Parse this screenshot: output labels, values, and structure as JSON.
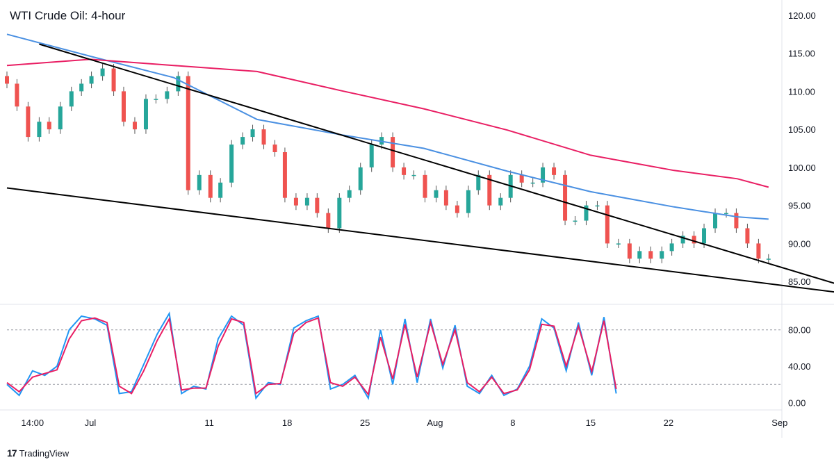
{
  "title": "WTI Crude Oil: 4-hour",
  "brand": {
    "logo": "17",
    "name": "TradingView"
  },
  "colors": {
    "up": "#26a69a",
    "down": "#ef5350",
    "wick": "#555555",
    "ma_fast": "#4a90e2",
    "ma_slow": "#e91e63",
    "trend": "#000000",
    "stoch_k": "#2196f3",
    "stoch_d": "#e91e63",
    "grid": "#e0e3eb"
  },
  "chart_data": {
    "type": "line",
    "price_axis": {
      "ticks": [
        "120.00",
        "115.00",
        "110.00",
        "105.00",
        "100.00",
        "95.00",
        "90.00",
        "85.00"
      ],
      "range": [
        82,
        122
      ]
    },
    "oscillator_axis": {
      "ticks": [
        "80.00",
        "40.00",
        "0.00"
      ],
      "range": [
        -8,
        108
      ],
      "levels": [
        80,
        20
      ]
    },
    "time_axis": {
      "labels": [
        "14:00",
        "Jul",
        "11",
        "18",
        "25",
        "Aug",
        "8",
        "15",
        "22",
        "Sep"
      ],
      "range_days": [
        -7.5,
        62.2
      ]
    },
    "price_close": [
      [
        -7.5,
        111
      ],
      [
        -6.6,
        108
      ],
      [
        -5.6,
        104
      ],
      [
        -4.6,
        106
      ],
      [
        -3.7,
        105
      ],
      [
        -2.7,
        108
      ],
      [
        -1.7,
        110
      ],
      [
        -0.8,
        111
      ],
      [
        0.1,
        112
      ],
      [
        1.1,
        113
      ],
      [
        2.1,
        110
      ],
      [
        3.0,
        106
      ],
      [
        4.0,
        105
      ],
      [
        5.0,
        109
      ],
      [
        5.9,
        109
      ],
      [
        6.9,
        110
      ],
      [
        7.9,
        112
      ],
      [
        8.8,
        97
      ],
      [
        9.8,
        99
      ],
      [
        10.8,
        96
      ],
      [
        11.7,
        98
      ],
      [
        12.7,
        103
      ],
      [
        13.7,
        104
      ],
      [
        14.6,
        105
      ],
      [
        15.6,
        103
      ],
      [
        16.6,
        102
      ],
      [
        17.5,
        96
      ],
      [
        18.5,
        95
      ],
      [
        19.5,
        96
      ],
      [
        20.4,
        94
      ],
      [
        21.4,
        92
      ],
      [
        22.4,
        96
      ],
      [
        23.3,
        97
      ],
      [
        24.3,
        100
      ],
      [
        25.3,
        103
      ],
      [
        26.2,
        104
      ],
      [
        27.2,
        100
      ],
      [
        28.2,
        99
      ],
      [
        29.1,
        99
      ],
      [
        30.1,
        96
      ],
      [
        31.1,
        97
      ],
      [
        32.0,
        95
      ],
      [
        33.0,
        94
      ],
      [
        34.0,
        97
      ],
      [
        34.9,
        99
      ],
      [
        35.9,
        95
      ],
      [
        36.9,
        96
      ],
      [
        37.8,
        99
      ],
      [
        38.8,
        98
      ],
      [
        39.8,
        98
      ],
      [
        40.7,
        100
      ],
      [
        41.7,
        99
      ],
      [
        42.7,
        93
      ],
      [
        43.6,
        93
      ],
      [
        44.6,
        95
      ],
      [
        45.6,
        95
      ],
      [
        46.5,
        90
      ],
      [
        47.5,
        90
      ],
      [
        48.5,
        88
      ],
      [
        49.4,
        89
      ],
      [
        50.4,
        88
      ],
      [
        51.4,
        89
      ],
      [
        52.3,
        90
      ],
      [
        53.3,
        91
      ],
      [
        54.3,
        90
      ],
      [
        55.2,
        92
      ],
      [
        56.2,
        94
      ],
      [
        57.2,
        94
      ],
      [
        58.1,
        92
      ],
      [
        59.1,
        90
      ],
      [
        60.1,
        88
      ],
      [
        61.0,
        88
      ]
    ],
    "trendlines": [
      {
        "name": "upper",
        "points": [
          [
            -4.6,
            116.2
          ],
          [
            69.8,
            83.5
          ]
        ]
      },
      {
        "name": "lower",
        "points": [
          [
            -7.5,
            97.3
          ],
          [
            69.8,
            83.1
          ]
        ]
      }
    ],
    "moving_averages": [
      {
        "name": "fast",
        "points": [
          [
            -7.5,
            117.5
          ],
          [
            0,
            114.6
          ],
          [
            7.5,
            111.8
          ],
          [
            15,
            106.3
          ],
          [
            22.5,
            104.3
          ],
          [
            30,
            102.5
          ],
          [
            37.5,
            99.5
          ],
          [
            45,
            96.8
          ],
          [
            52.5,
            94.8
          ],
          [
            58.2,
            93.5
          ],
          [
            61.0,
            93.2
          ]
        ]
      },
      {
        "name": "slow",
        "points": [
          [
            -7.5,
            113.4
          ],
          [
            0,
            114.2
          ],
          [
            7.5,
            113.4
          ],
          [
            15,
            112.6
          ],
          [
            22.5,
            110.1
          ],
          [
            30,
            107.7
          ],
          [
            37.5,
            104.9
          ],
          [
            45,
            101.6
          ],
          [
            52.5,
            99.6
          ],
          [
            58.2,
            98.5
          ],
          [
            61.0,
            97.4
          ]
        ]
      }
    ],
    "stochastic_k": [
      [
        -7.5,
        20
      ],
      [
        -6.4,
        8
      ],
      [
        -5.2,
        35
      ],
      [
        -4.1,
        30
      ],
      [
        -3.0,
        40
      ],
      [
        -1.9,
        80
      ],
      [
        -0.8,
        95
      ],
      [
        0.4,
        92
      ],
      [
        1.5,
        85
      ],
      [
        2.6,
        10
      ],
      [
        3.7,
        12
      ],
      [
        4.8,
        42
      ],
      [
        6.0,
        75
      ],
      [
        7.1,
        98
      ],
      [
        8.2,
        10
      ],
      [
        9.3,
        18
      ],
      [
        10.4,
        15
      ],
      [
        11.5,
        70
      ],
      [
        12.7,
        95
      ],
      [
        13.8,
        85
      ],
      [
        14.9,
        5
      ],
      [
        16.0,
        22
      ],
      [
        17.1,
        20
      ],
      [
        18.3,
        82
      ],
      [
        19.4,
        90
      ],
      [
        20.5,
        95
      ],
      [
        21.6,
        15
      ],
      [
        22.7,
        20
      ],
      [
        23.8,
        30
      ],
      [
        25.0,
        5
      ],
      [
        26.1,
        80
      ],
      [
        27.2,
        20
      ],
      [
        28.3,
        92
      ],
      [
        29.4,
        22
      ],
      [
        30.6,
        92
      ],
      [
        31.7,
        38
      ],
      [
        32.8,
        85
      ],
      [
        33.9,
        18
      ],
      [
        35.0,
        10
      ],
      [
        36.1,
        30
      ],
      [
        37.2,
        8
      ],
      [
        38.4,
        15
      ],
      [
        39.5,
        40
      ],
      [
        40.6,
        92
      ],
      [
        41.7,
        82
      ],
      [
        42.8,
        35
      ],
      [
        43.9,
        88
      ],
      [
        45.1,
        30
      ],
      [
        46.2,
        94
      ],
      [
        47.3,
        10
      ]
    ],
    "stochastic_d": [
      [
        -7.5,
        22
      ],
      [
        -6.4,
        12
      ],
      [
        -5.2,
        28
      ],
      [
        -4.1,
        32
      ],
      [
        -3.0,
        36
      ],
      [
        -1.9,
        70
      ],
      [
        -0.8,
        90
      ],
      [
        0.4,
        93
      ],
      [
        1.5,
        88
      ],
      [
        2.6,
        18
      ],
      [
        3.7,
        10
      ],
      [
        4.8,
        35
      ],
      [
        6.0,
        68
      ],
      [
        7.1,
        92
      ],
      [
        8.2,
        14
      ],
      [
        9.3,
        16
      ],
      [
        10.4,
        16
      ],
      [
        11.5,
        62
      ],
      [
        12.7,
        92
      ],
      [
        13.8,
        88
      ],
      [
        14.9,
        10
      ],
      [
        16.0,
        20
      ],
      [
        17.1,
        21
      ],
      [
        18.3,
        76
      ],
      [
        19.4,
        88
      ],
      [
        20.5,
        93
      ],
      [
        21.6,
        22
      ],
      [
        22.7,
        18
      ],
      [
        23.8,
        28
      ],
      [
        25.0,
        9
      ],
      [
        26.1,
        72
      ],
      [
        27.2,
        26
      ],
      [
        28.3,
        86
      ],
      [
        29.4,
        28
      ],
      [
        30.6,
        88
      ],
      [
        31.7,
        42
      ],
      [
        32.8,
        80
      ],
      [
        33.9,
        22
      ],
      [
        35.0,
        12
      ],
      [
        36.1,
        28
      ],
      [
        37.2,
        10
      ],
      [
        38.4,
        14
      ],
      [
        39.5,
        36
      ],
      [
        40.6,
        86
      ],
      [
        41.7,
        84
      ],
      [
        42.8,
        40
      ],
      [
        43.9,
        84
      ],
      [
        45.1,
        34
      ],
      [
        46.2,
        90
      ],
      [
        47.3,
        15
      ]
    ]
  }
}
